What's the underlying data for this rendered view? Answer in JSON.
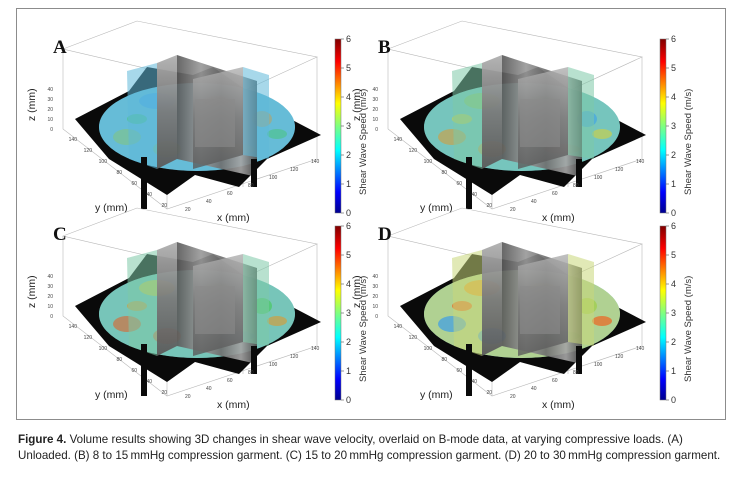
{
  "panels": [
    {
      "letter": "A",
      "zlabel": "z (mm)",
      "ylabel": "y (mm)",
      "xlabel": "x (mm)",
      "colorbar_label": "Shear Wave Speed (m/s)",
      "colorbar_ticks": [
        "0",
        "1",
        "2",
        "3",
        "4",
        "5",
        "6"
      ],
      "heat": 0.15
    },
    {
      "letter": "B",
      "zlabel": "z (mm)",
      "ylabel": "y (mm)",
      "xlabel": "x (mm)",
      "colorbar_label": "Shear Wave Speed (m/s)",
      "colorbar_ticks": [
        "0",
        "1",
        "2",
        "3",
        "4",
        "5",
        "6"
      ],
      "heat": 0.45
    },
    {
      "letter": "C",
      "zlabel": "z (mm)",
      "ylabel": "y (mm)",
      "xlabel": "x (mm)",
      "colorbar_label": "Shear Wave Speed (m/s)",
      "colorbar_ticks": [
        "0",
        "1",
        "2",
        "3",
        "4",
        "5",
        "6"
      ],
      "heat": 0.6
    },
    {
      "letter": "D",
      "zlabel": "z (mm)",
      "ylabel": "y (mm)",
      "xlabel": "x (mm)",
      "colorbar_label": "Shear Wave Speed (m/s)",
      "colorbar_ticks": [
        "0",
        "1",
        "2",
        "3",
        "4",
        "5",
        "6"
      ],
      "heat": 0.85
    }
  ],
  "ticks": {
    "z": [
      "40",
      "30",
      "20",
      "10",
      "0"
    ],
    "y": [
      "140",
      "120",
      "100",
      "80",
      "60",
      "40",
      "20"
    ],
    "x": [
      "20",
      "40",
      "60",
      "80",
      "100",
      "120",
      "140"
    ]
  },
  "caption": {
    "label": "Figure 4.",
    "text": "Volume results showing 3D changes in shear wave velocity, overlaid on B-mode data, at varying compressive loads. (A) Unloaded. (B) 8 to 15 mmHg compression garment. (C) 15 to 20 mmHg compression garment. (D) 20 to 30 mmHg compression garment."
  }
}
